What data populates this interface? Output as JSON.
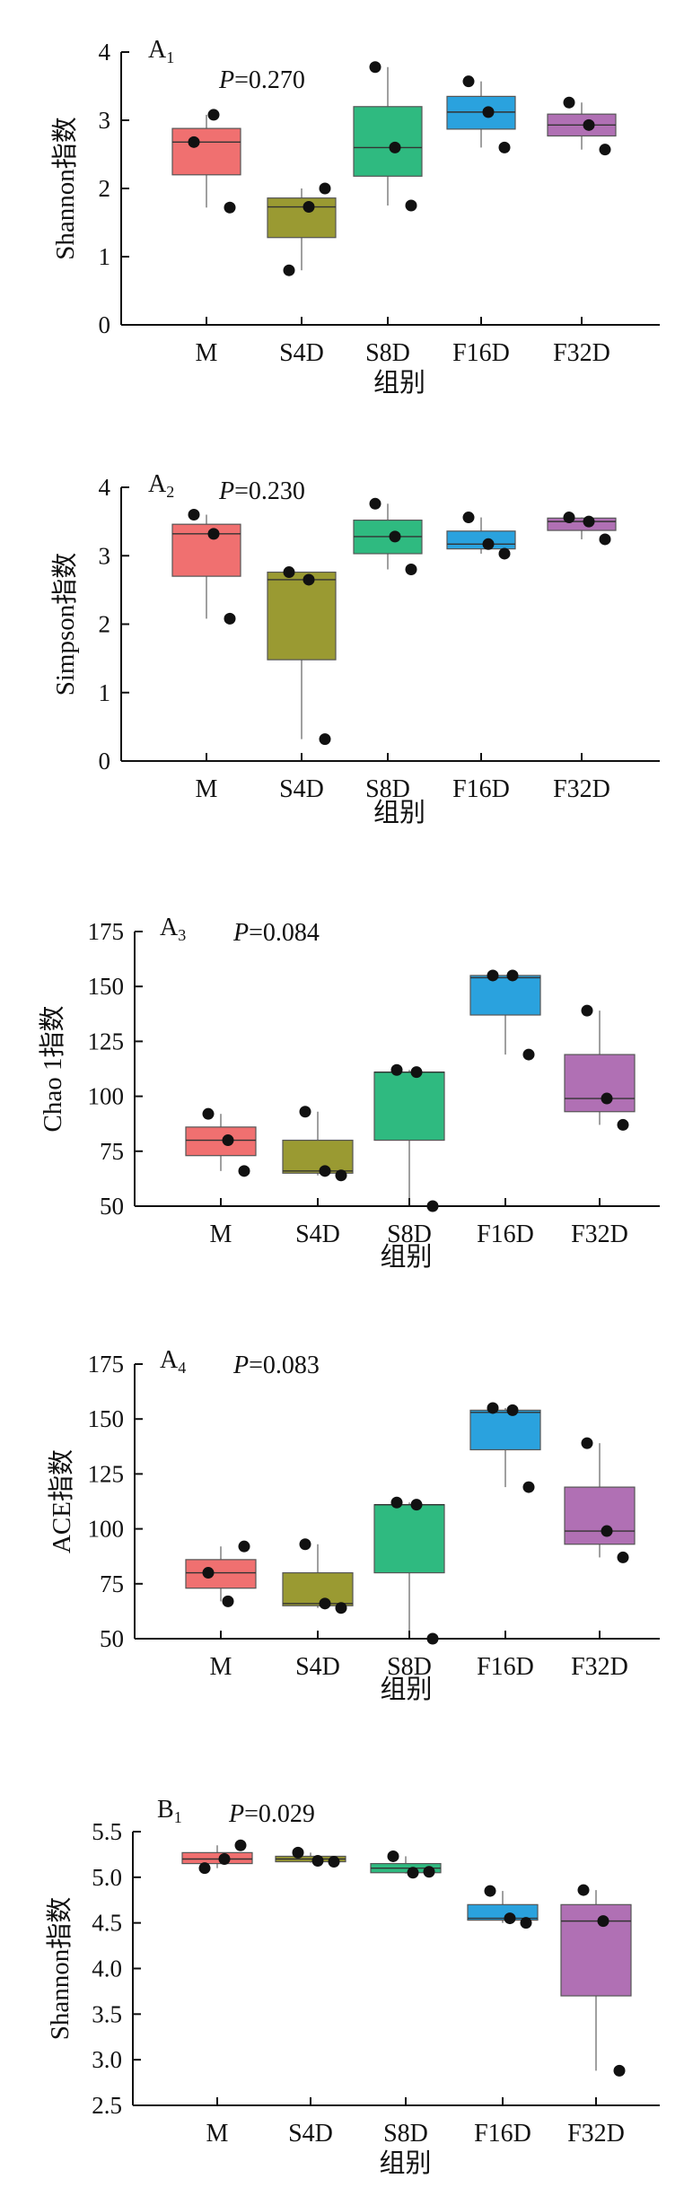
{
  "colors": {
    "M": "#f07070",
    "S4D": "#9a9a32",
    "S8D": "#2fba80",
    "F16D": "#2aa2de",
    "F32D": "#b070b4",
    "point": "#111111"
  },
  "chart_data": [
    {
      "type": "box",
      "panel_label": "A",
      "panel_sub": "1",
      "p_label": "P",
      "p_value": "=0.270",
      "ylabel": "Shannon指数",
      "xlabel": "组别",
      "ylim": [
        0,
        4
      ],
      "yticks": [
        "0",
        "1",
        "2",
        "3",
        "4"
      ],
      "categories": [
        "M",
        "S4D",
        "S8D",
        "F16D",
        "F32D"
      ],
      "boxes": [
        {
          "q1": 2.2,
          "median": 2.68,
          "q3": 2.88,
          "whisker_low": 1.72,
          "whisker_high": 3.08,
          "points": [
            2.68,
            3.08,
            1.72
          ]
        },
        {
          "q1": 1.28,
          "median": 1.73,
          "q3": 1.86,
          "whisker_low": 0.8,
          "whisker_high": 2.0,
          "points": [
            0.8,
            1.73,
            2.0
          ]
        },
        {
          "q1": 2.18,
          "median": 2.6,
          "q3": 3.2,
          "whisker_low": 1.75,
          "whisker_high": 3.78,
          "points": [
            3.78,
            2.6,
            1.75
          ]
        },
        {
          "q1": 2.87,
          "median": 3.12,
          "q3": 3.35,
          "whisker_low": 2.6,
          "whisker_high": 3.57,
          "points": [
            3.57,
            3.12,
            2.6
          ]
        },
        {
          "q1": 2.77,
          "median": 2.93,
          "q3": 3.09,
          "whisker_low": 2.57,
          "whisker_high": 3.26,
          "points": [
            3.26,
            2.93,
            2.57
          ]
        }
      ]
    },
    {
      "type": "box",
      "panel_label": "A",
      "panel_sub": "2",
      "p_label": "P",
      "p_value": "=0.230",
      "ylabel": "Simpson指数",
      "xlabel": "组别",
      "ylim": [
        0,
        4
      ],
      "yticks": [
        "0",
        "1",
        "2",
        "3",
        "4"
      ],
      "categories": [
        "M",
        "S4D",
        "S8D",
        "F16D",
        "F32D"
      ],
      "boxes": [
        {
          "q1": 2.7,
          "median": 3.32,
          "q3": 3.46,
          "whisker_low": 2.08,
          "whisker_high": 3.6,
          "points": [
            3.6,
            3.32,
            2.08
          ]
        },
        {
          "q1": 1.48,
          "median": 2.65,
          "q3": 2.76,
          "whisker_low": 0.32,
          "whisker_high": 2.76,
          "points": [
            2.76,
            2.65,
            0.32
          ]
        },
        {
          "q1": 3.03,
          "median": 3.28,
          "q3": 3.52,
          "whisker_low": 2.8,
          "whisker_high": 3.76,
          "points": [
            3.76,
            3.28,
            2.8
          ]
        },
        {
          "q1": 3.1,
          "median": 3.17,
          "q3": 3.36,
          "whisker_low": 3.03,
          "whisker_high": 3.56,
          "points": [
            3.56,
            3.17,
            3.03
          ]
        },
        {
          "q1": 3.37,
          "median": 3.5,
          "q3": 3.55,
          "whisker_low": 3.24,
          "whisker_high": 3.56,
          "points": [
            3.56,
            3.5,
            3.24
          ]
        }
      ]
    },
    {
      "type": "box",
      "panel_label": "A",
      "panel_sub": "3",
      "p_label": "P",
      "p_value": "=0.084",
      "ylabel": "Chao 1指数",
      "xlabel": "组别",
      "ylim": [
        50,
        175
      ],
      "yticks": [
        "50",
        "75",
        "100",
        "125",
        "150",
        "175"
      ],
      "categories": [
        "M",
        "S4D",
        "S8D",
        "F16D",
        "F32D"
      ],
      "boxes": [
        {
          "q1": 73,
          "median": 80,
          "q3": 86,
          "whisker_low": 66,
          "whisker_high": 92,
          "points": [
            92,
            80,
            66
          ]
        },
        {
          "q1": 65,
          "median": 66,
          "q3": 80,
          "whisker_low": 64,
          "whisker_high": 93,
          "points": [
            93,
            66,
            64
          ]
        },
        {
          "q1": 80,
          "median": 111,
          "q3": 111,
          "whisker_low": 50,
          "whisker_high": 112,
          "points": [
            112,
            111,
            50
          ]
        },
        {
          "q1": 137,
          "median": 154,
          "q3": 155,
          "whisker_low": 119,
          "whisker_high": 155,
          "points": [
            155,
            155,
            119
          ]
        },
        {
          "q1": 93,
          "median": 99,
          "q3": 119,
          "whisker_low": 87,
          "whisker_high": 139,
          "points": [
            139,
            99,
            87
          ]
        }
      ]
    },
    {
      "type": "box",
      "panel_label": "A",
      "panel_sub": "4",
      "p_label": "P",
      "p_value": "=0.083",
      "ylabel": "ACE指数",
      "xlabel": "组别",
      "ylim": [
        50,
        175
      ],
      "yticks": [
        "50",
        "75",
        "100",
        "125",
        "150",
        "175"
      ],
      "categories": [
        "M",
        "S4D",
        "S8D",
        "F16D",
        "F32D"
      ],
      "boxes": [
        {
          "q1": 73,
          "median": 80,
          "q3": 86,
          "whisker_low": 67,
          "whisker_high": 92,
          "points": [
            80,
            67,
            92
          ]
        },
        {
          "q1": 65,
          "median": 66,
          "q3": 80,
          "whisker_low": 64,
          "whisker_high": 93,
          "points": [
            93,
            66,
            64
          ]
        },
        {
          "q1": 80,
          "median": 111,
          "q3": 111,
          "whisker_low": 50,
          "whisker_high": 112,
          "points": [
            112,
            111,
            50
          ]
        },
        {
          "q1": 136,
          "median": 153,
          "q3": 154,
          "whisker_low": 119,
          "whisker_high": 155,
          "points": [
            155,
            154,
            119
          ]
        },
        {
          "q1": 93,
          "median": 99,
          "q3": 119,
          "whisker_low": 87,
          "whisker_high": 139,
          "points": [
            139,
            99,
            87
          ]
        }
      ]
    },
    {
      "type": "box",
      "panel_label": "B",
      "panel_sub": "1",
      "p_label": "P",
      "p_value": "=0.029",
      "ylabel": "Shannon指数",
      "xlabel": "组别",
      "ylim": [
        2.5,
        5.5
      ],
      "yticks": [
        "2.5",
        "3.0",
        "3.5",
        "4.0",
        "4.5",
        "5.0",
        "5.5"
      ],
      "categories": [
        "M",
        "S4D",
        "S8D",
        "F16D",
        "F32D"
      ],
      "boxes": [
        {
          "q1": 5.15,
          "median": 5.2,
          "q3": 5.27,
          "whisker_low": 5.1,
          "whisker_high": 5.35,
          "points": [
            5.1,
            5.2,
            5.35
          ]
        },
        {
          "q1": 5.17,
          "median": 5.2,
          "q3": 5.23,
          "whisker_low": 5.16,
          "whisker_high": 5.27,
          "points": [
            5.27,
            5.18,
            5.17
          ]
        },
        {
          "q1": 5.05,
          "median": 5.1,
          "q3": 5.15,
          "whisker_low": 5.04,
          "whisker_high": 5.23,
          "points": [
            5.23,
            5.05,
            5.06
          ]
        },
        {
          "q1": 4.53,
          "median": 4.55,
          "q3": 4.7,
          "whisker_low": 4.5,
          "whisker_high": 4.85,
          "points": [
            4.85,
            4.55,
            4.5
          ]
        },
        {
          "q1": 3.7,
          "median": 4.52,
          "q3": 4.7,
          "whisker_low": 2.88,
          "whisker_high": 4.86,
          "points": [
            4.86,
            4.52,
            2.88
          ]
        }
      ]
    }
  ]
}
